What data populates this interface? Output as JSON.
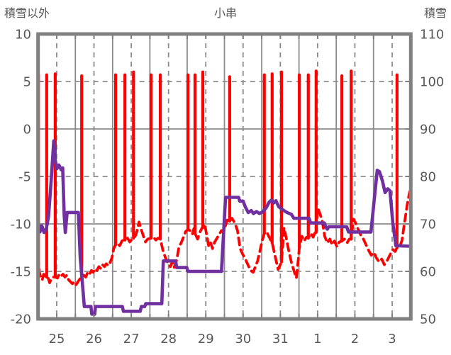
{
  "header": {
    "left_axis_title": "積雪以外",
    "chart_title": "小串",
    "right_axis_title": "積雪"
  },
  "colors": {
    "frame": "#808080",
    "grid": "#8c8c8c",
    "label": "#595959",
    "red_series": "#ff0000",
    "purple_series": "#7030a0"
  },
  "chart_data": {
    "type": "line",
    "title": "小串",
    "x_axis": {
      "labels": [
        "25",
        "26",
        "27",
        "28",
        "29",
        "30",
        "31",
        "1",
        "2",
        "3"
      ],
      "label_positions_days": [
        0.5,
        1.5,
        2.5,
        3.5,
        4.5,
        5.5,
        6.5,
        7.5,
        8.5,
        9.5
      ],
      "range_days": [
        0,
        10
      ],
      "solid_gridlines_days": [
        1,
        2,
        3,
        4,
        5,
        6,
        7,
        8,
        9
      ],
      "dashed_gridlines_days": [
        0.5,
        1.5,
        2.5,
        3.5,
        4.5,
        5.5,
        6.5,
        7.5,
        8.5,
        9.5
      ]
    },
    "left_axis": {
      "title": "積雪以外",
      "ticks": [
        10,
        5,
        0,
        -5,
        -10,
        -15,
        -20
      ],
      "range": [
        -20,
        10
      ],
      "solid_lines": [
        0,
        -10
      ],
      "dashed_lines": [
        5,
        -5,
        -15
      ]
    },
    "right_axis": {
      "title": "積雪",
      "ticks": [
        110,
        100,
        90,
        80,
        70,
        60,
        50
      ],
      "range": [
        50,
        110
      ]
    },
    "series": [
      {
        "name": "積雪以外",
        "axis": "left",
        "color": "#ff0000",
        "style": "dashed",
        "points": [
          [
            0.0,
            -13.5
          ],
          [
            0.03,
            -15.0
          ],
          [
            0.07,
            -15.6
          ],
          [
            0.11,
            -15.9
          ],
          [
            0.15,
            -15.3
          ],
          [
            0.19,
            -15.6
          ],
          [
            0.23,
            -15.6
          ],
          [
            0.27,
            -15.7
          ],
          [
            0.31,
            -16.2
          ],
          [
            0.35,
            -15.8
          ],
          [
            0.4,
            -15.6
          ],
          [
            0.46,
            -15.6
          ],
          [
            0.52,
            -15.7
          ],
          [
            0.57,
            -15.3
          ],
          [
            0.62,
            -15.5
          ],
          [
            0.67,
            -15.3
          ],
          [
            0.72,
            -15.6
          ],
          [
            0.77,
            -15.4
          ],
          [
            0.82,
            -15.9
          ],
          [
            0.87,
            -16.1
          ],
          [
            0.92,
            -16.3
          ],
          [
            0.97,
            -16.1
          ],
          [
            1.02,
            -16.4
          ],
          [
            1.07,
            -16.1
          ],
          [
            1.12,
            -15.8
          ],
          [
            1.17,
            -15.5
          ],
          [
            1.22,
            -15.4
          ],
          [
            1.28,
            -15.6
          ],
          [
            1.33,
            -15.1
          ],
          [
            1.38,
            -15.3
          ],
          [
            1.43,
            -14.9
          ],
          [
            1.48,
            -15.1
          ],
          [
            1.53,
            -14.7
          ],
          [
            1.58,
            -14.9
          ],
          [
            1.63,
            -14.5
          ],
          [
            1.68,
            -14.7
          ],
          [
            1.73,
            -14.3
          ],
          [
            1.78,
            -14.5
          ],
          [
            1.83,
            -14.2
          ],
          [
            1.88,
            -14.4
          ],
          [
            1.93,
            -14.1
          ],
          [
            1.98,
            -13.6
          ],
          [
            2.03,
            -12.6
          ],
          [
            2.08,
            -12.2
          ],
          [
            2.13,
            -12.0
          ],
          [
            2.19,
            -12.3
          ],
          [
            2.25,
            -11.8
          ],
          [
            2.33,
            -11.6
          ],
          [
            2.4,
            -11.5
          ],
          [
            2.46,
            -11.9
          ],
          [
            2.52,
            -11.6
          ],
          [
            2.56,
            -11.5
          ],
          [
            2.62,
            -11.2
          ],
          [
            2.67,
            -10.5
          ],
          [
            2.71,
            -9.8
          ],
          [
            2.76,
            -10.5
          ],
          [
            2.82,
            -11.2
          ],
          [
            2.88,
            -11.9
          ],
          [
            2.94,
            -11.6
          ],
          [
            3.03,
            -11.5
          ],
          [
            3.1,
            -11.4
          ],
          [
            3.16,
            -11.7
          ],
          [
            3.22,
            -11.5
          ],
          [
            3.28,
            -11.6
          ],
          [
            3.35,
            -12.8
          ],
          [
            3.42,
            -13.6
          ],
          [
            3.48,
            -14.1
          ],
          [
            3.55,
            -14.5
          ],
          [
            3.6,
            -14.0
          ],
          [
            3.65,
            -14.6
          ],
          [
            3.72,
            -13.8
          ],
          [
            3.78,
            -12.4
          ],
          [
            3.84,
            -12.0
          ],
          [
            3.9,
            -11.4
          ],
          [
            3.96,
            -10.8
          ],
          [
            4.02,
            -10.6
          ],
          [
            4.08,
            -10.7
          ],
          [
            4.14,
            -11.1
          ],
          [
            4.18,
            -10.5
          ],
          [
            4.21,
            -11.0
          ],
          [
            4.28,
            -11.6
          ],
          [
            4.34,
            -10.9
          ],
          [
            4.4,
            -10.4
          ],
          [
            4.47,
            -10.0
          ],
          [
            4.53,
            -11.3
          ],
          [
            4.58,
            -12.4
          ],
          [
            4.63,
            -12.0
          ],
          [
            4.68,
            -12.6
          ],
          [
            4.74,
            -11.9
          ],
          [
            4.8,
            -11.5
          ],
          [
            4.86,
            -11.1
          ],
          [
            4.92,
            -10.7
          ],
          [
            4.97,
            -10.9
          ],
          [
            5.02,
            -10.3
          ],
          [
            5.07,
            -9.6
          ],
          [
            5.11,
            -9.9
          ],
          [
            5.14,
            -9.7
          ],
          [
            5.2,
            -9.4
          ],
          [
            5.28,
            -9.9
          ],
          [
            5.35,
            -10.7
          ],
          [
            5.42,
            -12.6
          ],
          [
            5.49,
            -13.2
          ],
          [
            5.56,
            -13.7
          ],
          [
            5.63,
            -14.3
          ],
          [
            5.7,
            -14.9
          ],
          [
            5.77,
            -15.1
          ],
          [
            5.83,
            -14.5
          ],
          [
            5.89,
            -13.9
          ],
          [
            5.95,
            -12.9
          ],
          [
            6.01,
            -11.8
          ],
          [
            6.07,
            -11.0
          ],
          [
            6.13,
            -10.8
          ],
          [
            6.19,
            -11.3
          ],
          [
            6.28,
            -12.0
          ],
          [
            6.36,
            -13.4
          ],
          [
            6.44,
            -14.8
          ],
          [
            6.53,
            -14.0
          ],
          [
            6.6,
            -10.4
          ],
          [
            6.66,
            -11.5
          ],
          [
            6.73,
            -12.9
          ],
          [
            6.8,
            -14.1
          ],
          [
            6.87,
            -15.0
          ],
          [
            6.93,
            -15.7
          ],
          [
            6.98,
            -13.8
          ],
          [
            7.01,
            -12.5
          ],
          [
            7.08,
            -11.3
          ],
          [
            7.14,
            -11.8
          ],
          [
            7.2,
            -11.4
          ],
          [
            7.25,
            -11.5
          ],
          [
            7.32,
            -11.0
          ],
          [
            7.38,
            -11.4
          ],
          [
            7.43,
            -10.9
          ],
          [
            7.46,
            -10.9
          ],
          [
            7.5,
            -8.3
          ],
          [
            7.56,
            -8.9
          ],
          [
            7.62,
            -9.6
          ],
          [
            7.69,
            -11.3
          ],
          [
            7.76,
            -12.0
          ],
          [
            7.83,
            -11.6
          ],
          [
            7.89,
            -12.2
          ],
          [
            7.95,
            -11.8
          ],
          [
            8.02,
            -12.4
          ],
          [
            8.08,
            -11.9
          ],
          [
            8.15,
            -11.8
          ],
          [
            8.22,
            -11.6
          ],
          [
            8.29,
            -12.0
          ],
          [
            8.35,
            -11.6
          ],
          [
            8.4,
            -11.6
          ],
          [
            8.46,
            -9.5
          ],
          [
            8.52,
            -9.9
          ],
          [
            8.59,
            -10.6
          ],
          [
            8.66,
            -11.2
          ],
          [
            8.73,
            -11.6
          ],
          [
            8.8,
            -12.2
          ],
          [
            8.87,
            -12.8
          ],
          [
            8.94,
            -13.3
          ],
          [
            9.01,
            -13.0
          ],
          [
            9.08,
            -13.6
          ],
          [
            9.15,
            -14.0
          ],
          [
            9.22,
            -13.7
          ],
          [
            9.29,
            -14.3
          ],
          [
            9.36,
            -13.9
          ],
          [
            9.45,
            -13.2
          ],
          [
            9.52,
            -12.7
          ],
          [
            9.58,
            -12.9
          ],
          [
            9.63,
            -12.5
          ],
          [
            9.7,
            -12.4
          ],
          [
            9.76,
            -11.8
          ],
          [
            9.83,
            -9.9
          ],
          [
            9.9,
            -8.1
          ],
          [
            9.96,
            -6.8
          ],
          [
            10.0,
            -6.3
          ]
        ],
        "spikes": [
          [
            0.01,
            -15.3,
            5.7
          ],
          [
            0.23,
            -15.6,
            5.7
          ],
          [
            0.46,
            -15.6,
            5.8
          ],
          [
            1.17,
            -15.5,
            5.6
          ],
          [
            2.08,
            -12.2,
            5.7
          ],
          [
            2.33,
            -11.7,
            5.7
          ],
          [
            2.56,
            -11.5,
            6.0
          ],
          [
            3.03,
            -11.5,
            5.7
          ],
          [
            3.28,
            -11.6,
            5.7
          ],
          [
            4.02,
            -10.6,
            5.7
          ],
          [
            4.21,
            -11.0,
            5.7
          ],
          [
            4.42,
            -10.4,
            6.0
          ],
          [
            5.14,
            -9.7,
            5.5
          ],
          [
            6.07,
            -11.0,
            5.7
          ],
          [
            6.28,
            -12.0,
            5.8
          ],
          [
            6.53,
            -14.0,
            6.0
          ],
          [
            7.01,
            -12.5,
            5.7
          ],
          [
            7.25,
            -11.5,
            5.7
          ],
          [
            7.46,
            -10.9,
            6.1
          ],
          [
            8.15,
            -11.8,
            5.6
          ],
          [
            8.4,
            -11.6,
            6.1
          ],
          [
            9.63,
            -12.5,
            5.7
          ]
        ]
      },
      {
        "name": "積雪",
        "axis": "right",
        "color": "#7030a0",
        "style": "solid",
        "points": [
          [
            0.0,
            70.5
          ],
          [
            0.05,
            68.3
          ],
          [
            0.1,
            69.6
          ],
          [
            0.16,
            68.2
          ],
          [
            0.22,
            69.0
          ],
          [
            0.28,
            71.5
          ],
          [
            0.35,
            79.0
          ],
          [
            0.42,
            87.5
          ],
          [
            0.46,
            83.5
          ],
          [
            0.5,
            81.6
          ],
          [
            0.56,
            82.4
          ],
          [
            0.62,
            81.4
          ],
          [
            0.66,
            81.8
          ],
          [
            0.7,
            72.0
          ],
          [
            0.73,
            68.2
          ],
          [
            0.78,
            72.4
          ],
          [
            1.08,
            72.4
          ],
          [
            1.13,
            63.0
          ],
          [
            1.24,
            52.6
          ],
          [
            1.42,
            52.6
          ],
          [
            1.44,
            51.0
          ],
          [
            1.52,
            51.0
          ],
          [
            1.54,
            52.6
          ],
          [
            2.26,
            52.6
          ],
          [
            2.29,
            51.6
          ],
          [
            2.74,
            51.6
          ],
          [
            2.77,
            52.6
          ],
          [
            2.86,
            52.6
          ],
          [
            2.89,
            53.2
          ],
          [
            3.32,
            53.2
          ],
          [
            3.36,
            62.2
          ],
          [
            3.69,
            62.2
          ],
          [
            3.72,
            60.8
          ],
          [
            3.99,
            60.8
          ],
          [
            4.02,
            60.0
          ],
          [
            4.92,
            60.0
          ],
          [
            5.03,
            75.6
          ],
          [
            5.38,
            75.6
          ],
          [
            5.41,
            74.8
          ],
          [
            5.5,
            74.8
          ],
          [
            5.56,
            73.6
          ],
          [
            5.64,
            72.4
          ],
          [
            5.72,
            72.8
          ],
          [
            5.78,
            72.2
          ],
          [
            5.86,
            72.6
          ],
          [
            5.94,
            72.2
          ],
          [
            6.02,
            72.5
          ],
          [
            6.12,
            73.4
          ],
          [
            6.2,
            74.6
          ],
          [
            6.26,
            75.0
          ],
          [
            6.32,
            74.4
          ],
          [
            6.38,
            74.9
          ],
          [
            6.46,
            73.6
          ],
          [
            6.56,
            73.0
          ],
          [
            6.68,
            72.4
          ],
          [
            6.8,
            72.0
          ],
          [
            6.86,
            71.2
          ],
          [
            7.27,
            71.2
          ],
          [
            7.31,
            70.2
          ],
          [
            7.68,
            70.2
          ],
          [
            7.72,
            69.3
          ],
          [
            7.76,
            68.9
          ],
          [
            7.8,
            69.4
          ],
          [
            8.28,
            69.4
          ],
          [
            8.33,
            68.3
          ],
          [
            8.93,
            68.3
          ],
          [
            9.1,
            81.3
          ],
          [
            9.16,
            81.0
          ],
          [
            9.24,
            79.0
          ],
          [
            9.31,
            76.6
          ],
          [
            9.38,
            77.4
          ],
          [
            9.44,
            77.0
          ],
          [
            9.52,
            70.0
          ],
          [
            9.6,
            65.4
          ],
          [
            10.0,
            65.3
          ]
        ]
      }
    ],
    "legend_position": "none",
    "grid_on": true
  }
}
